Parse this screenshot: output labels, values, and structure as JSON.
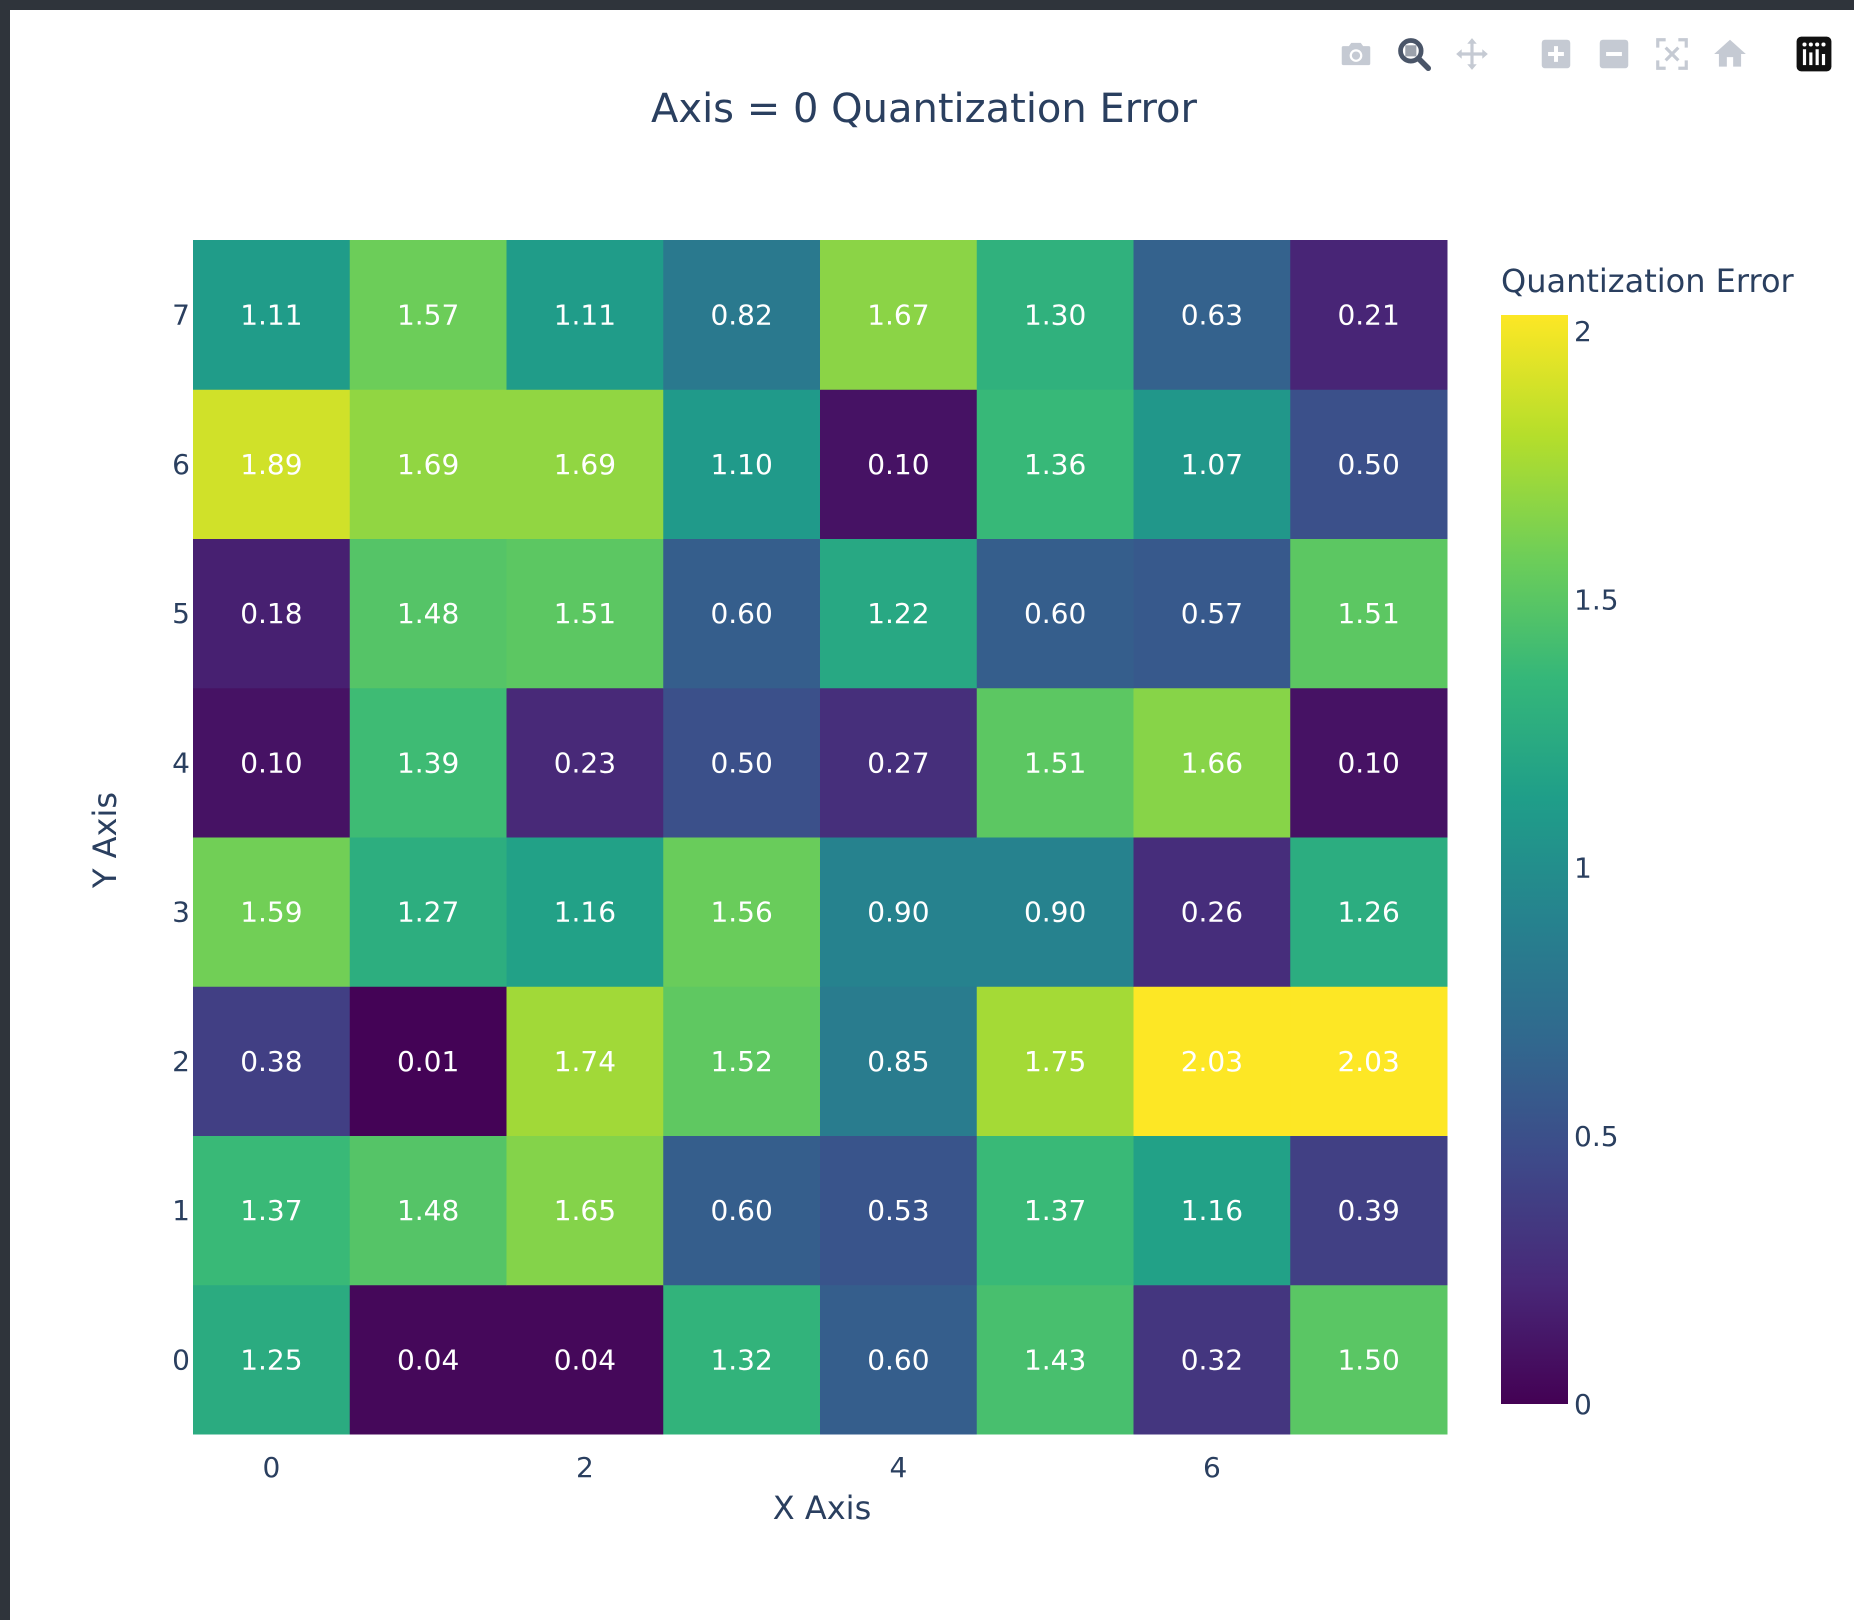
{
  "modebar": {
    "buttons": [
      {
        "name": "camera-icon",
        "title": "Download plot as a png"
      },
      {
        "name": "zoom-icon",
        "title": "Zoom"
      },
      {
        "name": "pan-icon",
        "title": "Pan"
      },
      {
        "name": "zoom-in-icon",
        "title": "Zoom in"
      },
      {
        "name": "zoom-out-icon",
        "title": "Zoom out"
      },
      {
        "name": "autoscale-icon",
        "title": "Autoscale"
      },
      {
        "name": "home-icon",
        "title": "Reset axes"
      },
      {
        "name": "plotly-logo-icon",
        "title": "Produced with Plotly"
      }
    ]
  },
  "chart_data": {
    "type": "heatmap",
    "title": "Axis = 0 Quantization Error",
    "xlabel": "X Axis",
    "ylabel": "Y Axis",
    "x": [
      0,
      1,
      2,
      3,
      4,
      5,
      6,
      7
    ],
    "y": [
      0,
      1,
      2,
      3,
      4,
      5,
      6,
      7
    ],
    "x_ticks": [
      "0",
      "2",
      "4",
      "6"
    ],
    "y_ticks": [
      "0",
      "1",
      "2",
      "3",
      "4",
      "5",
      "6",
      "7"
    ],
    "z": [
      [
        1.25,
        0.04,
        0.04,
        1.32,
        0.6,
        1.43,
        0.32,
        1.5
      ],
      [
        1.37,
        1.48,
        1.65,
        0.6,
        0.53,
        1.37,
        1.16,
        0.39
      ],
      [
        0.38,
        0.01,
        1.74,
        1.52,
        0.85,
        1.75,
        2.03,
        2.03
      ],
      [
        1.59,
        1.27,
        1.16,
        1.56,
        0.9,
        0.9,
        0.26,
        1.26
      ],
      [
        0.1,
        1.39,
        0.23,
        0.5,
        0.27,
        1.51,
        1.66,
        0.1
      ],
      [
        0.18,
        1.48,
        1.51,
        0.6,
        1.22,
        0.6,
        0.57,
        1.51
      ],
      [
        1.89,
        1.69,
        1.69,
        1.1,
        0.1,
        1.36,
        1.07,
        0.5
      ],
      [
        1.11,
        1.57,
        1.11,
        0.82,
        1.67,
        1.3,
        0.63,
        0.21
      ]
    ],
    "colorscale": "Viridis",
    "zmin": 0,
    "zmax": 2.03,
    "colorbar": {
      "title": "Quantization Error",
      "tick_values": [
        0,
        0.5,
        1,
        1.5,
        2
      ],
      "tick_labels": [
        "0",
        "0.5",
        "1",
        "1.5",
        "2"
      ]
    },
    "text_format": "0.00",
    "grid": false
  },
  "colors": {
    "text": "#2a3f5f",
    "cell_text": "#ffffff",
    "background": "#ffffff",
    "frame": "#2f343b"
  }
}
